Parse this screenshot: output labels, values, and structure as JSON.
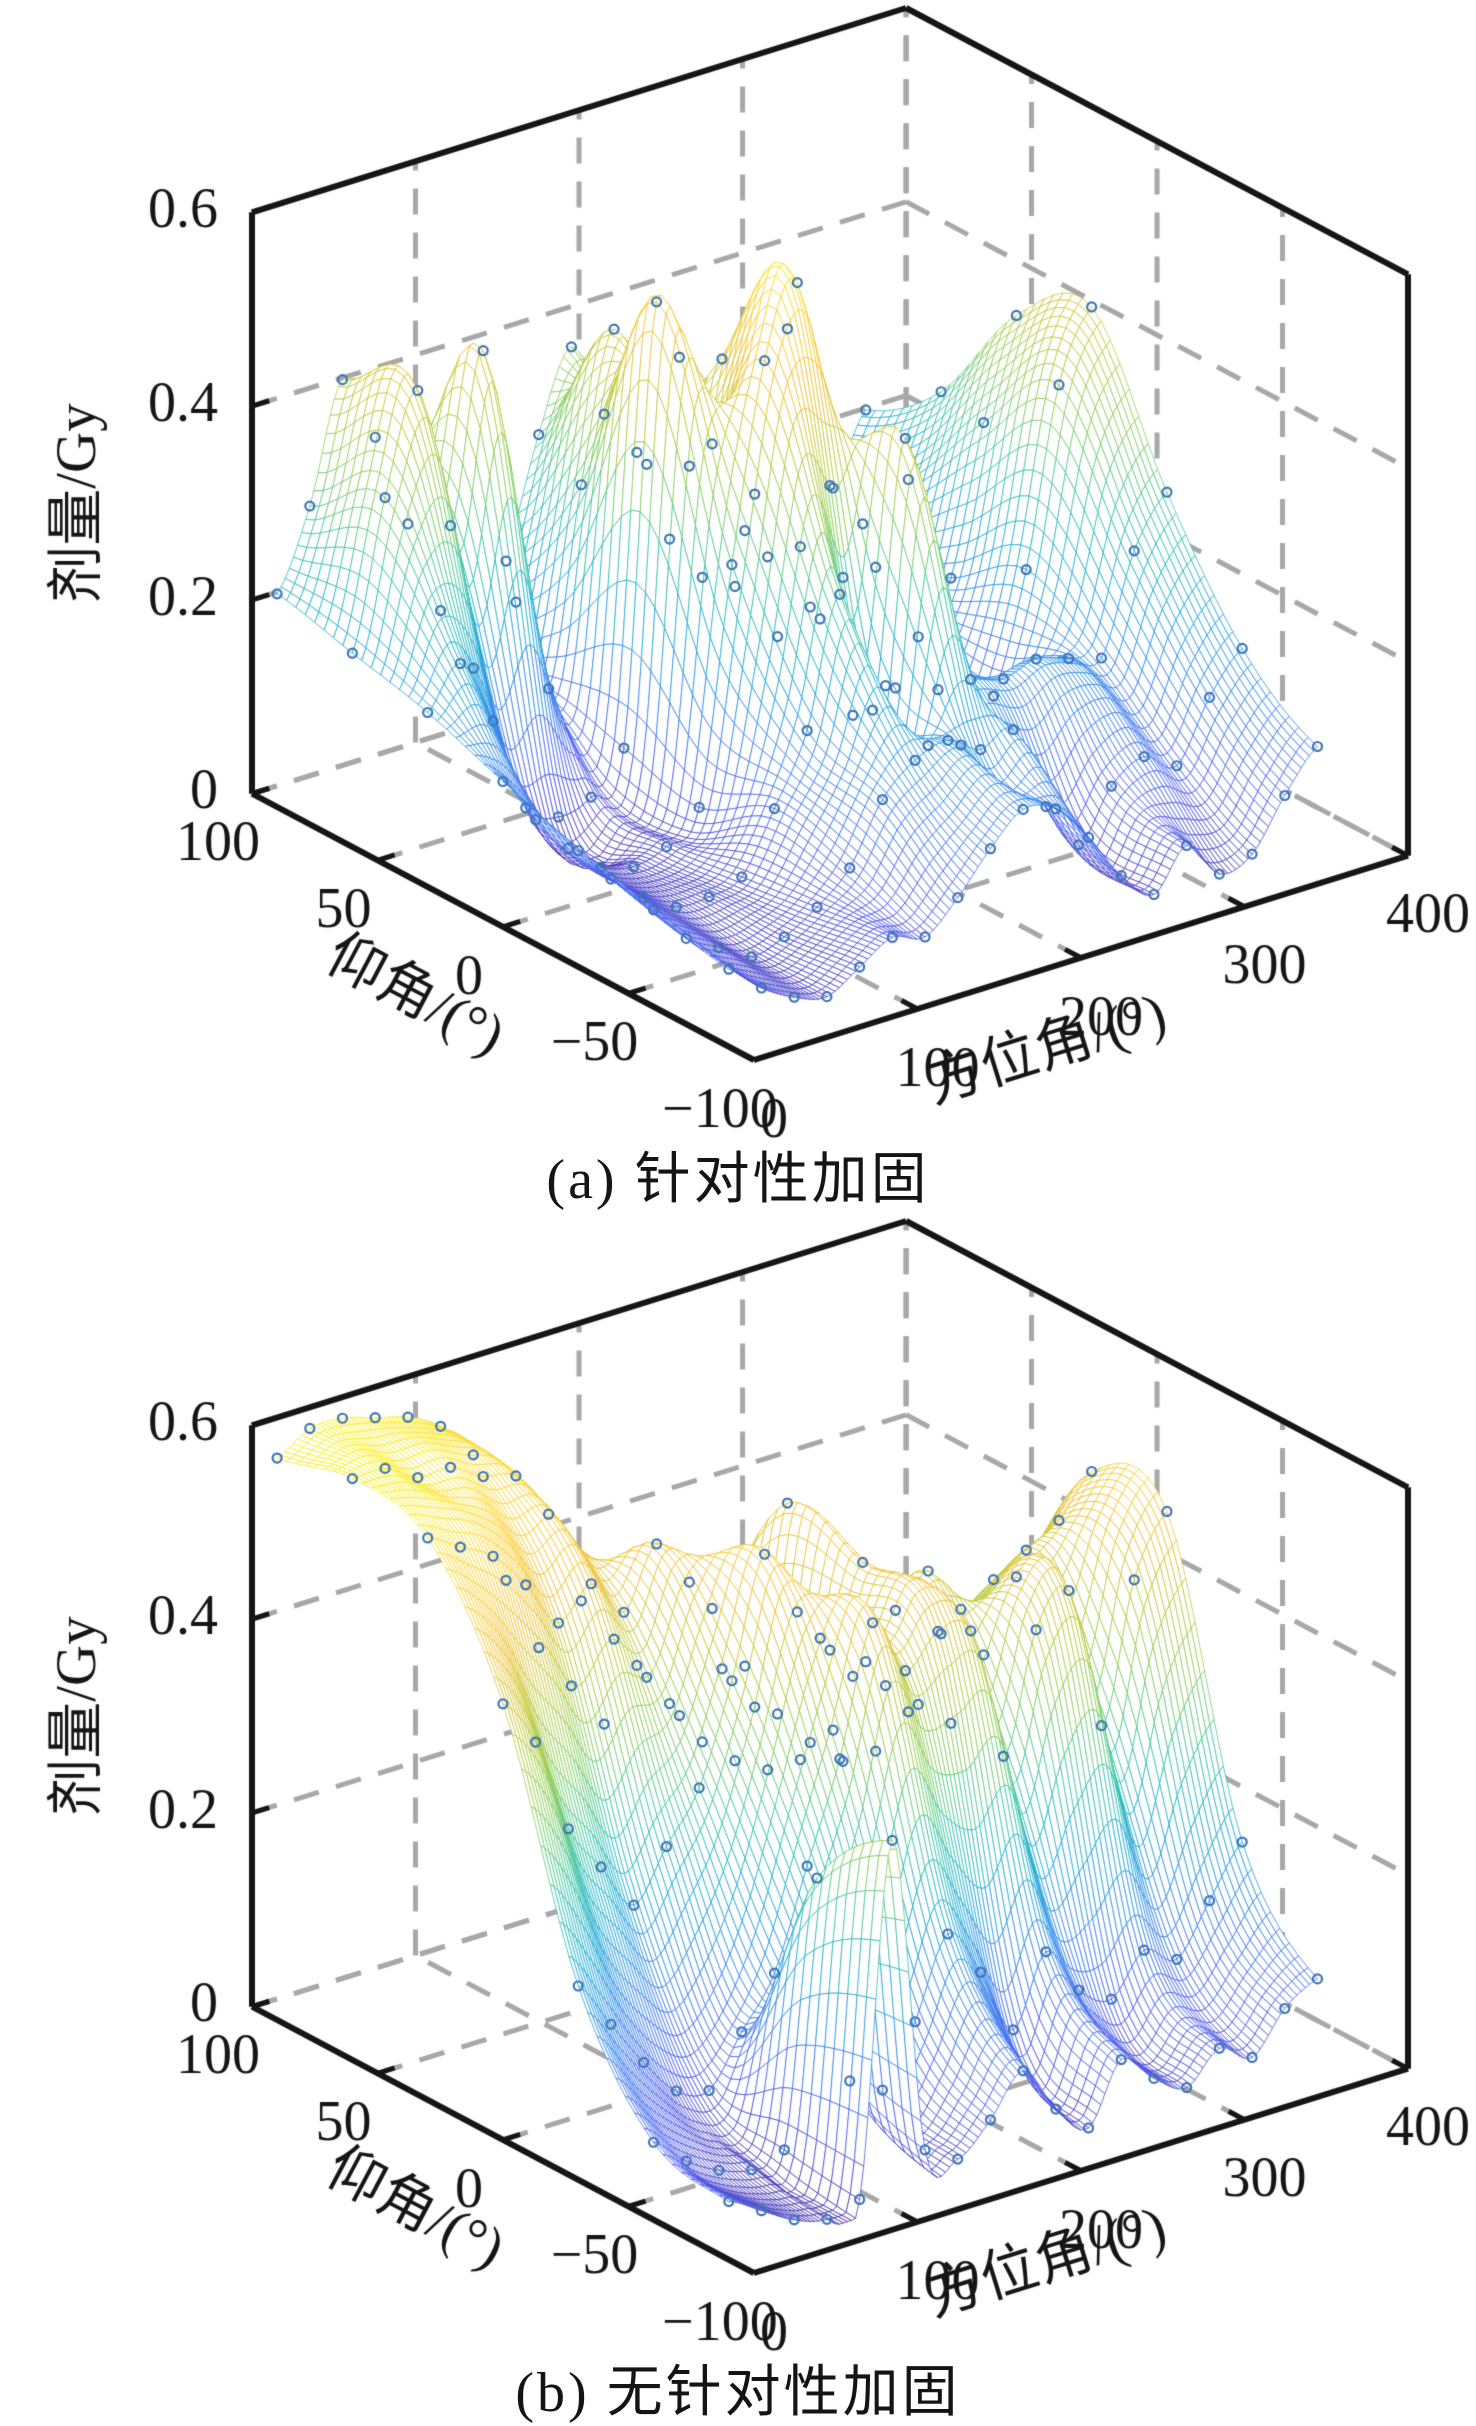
{
  "page": {
    "background": "#ffffff"
  },
  "colors": {
    "axis": "#151515",
    "grid_dash": "#a8a8a8",
    "marker": "#3d74b6",
    "mesh_face": "#ffffff",
    "parula": [
      "#3e26a8",
      "#4153f1",
      "#2d7cec",
      "#12a4d8",
      "#2fc1a4",
      "#7ecb57",
      "#b9c732",
      "#f2be2b",
      "#fdd32a",
      "#f9fb0e"
    ]
  },
  "chart_data": [
    {
      "type": "surface3d",
      "title": "(a) 针对性加固",
      "xlabel": "方位角/(°)",
      "ylabel": "仰角/(°)",
      "zlabel": "剂量/Gy",
      "x_ticks": [
        0,
        100,
        200,
        300,
        400
      ],
      "y_ticks": [
        100,
        50,
        0,
        -50,
        -100
      ],
      "z_ticks": [
        0,
        0.2,
        0.4,
        0.6
      ],
      "x_tick_labels": [
        "0",
        "100",
        "200",
        "300",
        "400"
      ],
      "y_tick_labels": [
        "100",
        "50",
        "0",
        "−50",
        "−100"
      ],
      "z_tick_labels": [
        "0",
        "0.2",
        "0.4",
        "0.6"
      ],
      "xlim": [
        0,
        400
      ],
      "ylim": [
        -100,
        100
      ],
      "zlim": [
        0,
        0.6
      ],
      "grid": true,
      "legend": "none",
      "azimuth_deg": [
        0,
        20,
        40,
        60,
        80,
        100,
        120,
        140,
        160,
        180,
        200,
        220,
        240,
        260,
        280,
        300,
        320,
        340,
        360
      ],
      "elevation_deg": [
        -90,
        -60,
        -30,
        0,
        30,
        60,
        90
      ],
      "dose_gy": [
        [
          0.08,
          0.05,
          0.03,
          0.02,
          0.04,
          0.06,
          0.05,
          0.08,
          0.12,
          0.15,
          0.14,
          0.1,
          0.05,
          0.02,
          0.06,
          0.02,
          0.03,
          0.08,
          0.12
        ],
        [
          0.1,
          0.06,
          0.04,
          0.02,
          0.03,
          0.05,
          0.08,
          0.14,
          0.17,
          0.18,
          0.16,
          0.17,
          0.08,
          0.03,
          0.08,
          0.1,
          0.08,
          0.14,
          0.18
        ],
        [
          0.12,
          0.08,
          0.05,
          0.03,
          0.03,
          0.04,
          0.1,
          0.17,
          0.3,
          0.17,
          0.44,
          0.17,
          0.17,
          0.16,
          0.17,
          0.16,
          0.15,
          0.25,
          0.3
        ],
        [
          0.15,
          0.1,
          0.06,
          0.03,
          0.02,
          0.03,
          0.06,
          0.3,
          0.5,
          0.57,
          0.35,
          0.3,
          0.12,
          0.05,
          0.04,
          0.08,
          0.2,
          0.38,
          0.45
        ],
        [
          0.18,
          0.22,
          0.15,
          0.05,
          0.03,
          0.04,
          0.08,
          0.53,
          0.35,
          0.45,
          0.3,
          0.46,
          0.15,
          0.04,
          0.06,
          0.1,
          0.15,
          0.3,
          0.4
        ],
        [
          0.2,
          0.35,
          0.45,
          0.3,
          0.47,
          0.2,
          0.1,
          0.3,
          0.45,
          0.3,
          0.4,
          0.3,
          0.2,
          0.08,
          0.1,
          0.12,
          0.12,
          0.2,
          0.28
        ],
        [
          0.22,
          0.3,
          0.42,
          0.35,
          0.25,
          0.15,
          0.08,
          0.18,
          0.3,
          0.38,
          0.3,
          0.25,
          0.15,
          0.1,
          0.08,
          0.1,
          0.1,
          0.15,
          0.22
        ]
      ]
    },
    {
      "type": "surface3d",
      "title": "(b) 无针对性加固",
      "xlabel": "方位角/(°)",
      "ylabel": "仰角/(°)",
      "zlabel": "剂量/Gy",
      "x_ticks": [
        0,
        100,
        200,
        300,
        400
      ],
      "y_ticks": [
        100,
        50,
        0,
        -50,
        -100
      ],
      "z_ticks": [
        0,
        0.2,
        0.4,
        0.6
      ],
      "x_tick_labels": [
        "0",
        "100",
        "200",
        "300",
        "400"
      ],
      "y_tick_labels": [
        "100",
        "50",
        "0",
        "−50",
        "−100"
      ],
      "z_tick_labels": [
        "0",
        "0.2",
        "0.4",
        "0.6"
      ],
      "xlim": [
        0,
        400
      ],
      "ylim": [
        -100,
        100
      ],
      "zlim": [
        0,
        0.6
      ],
      "grid": true,
      "legend": "none",
      "azimuth_deg": [
        0,
        20,
        40,
        60,
        80,
        100,
        120,
        140,
        160,
        180,
        200,
        220,
        240,
        260,
        280,
        300,
        320,
        340,
        360
      ],
      "elevation_deg": [
        -90,
        -60,
        -30,
        0,
        30,
        60,
        90
      ],
      "dose_gy": [
        [
          0.06,
          0.04,
          0.02,
          0.01,
          0.02,
          0.38,
          0.05,
          0.03,
          0.06,
          0.1,
          0.05,
          0.02,
          0.08,
          0.05,
          0.03,
          0.06,
          0.04,
          0.08,
          0.1
        ],
        [
          0.08,
          0.05,
          0.03,
          0.02,
          0.03,
          0.3,
          0.08,
          0.06,
          0.12,
          0.2,
          0.15,
          0.08,
          0.15,
          0.1,
          0.08,
          0.12,
          0.1,
          0.15,
          0.2
        ],
        [
          0.2,
          0.15,
          0.1,
          0.06,
          0.05,
          0.1,
          0.15,
          0.25,
          0.35,
          0.48,
          0.42,
          0.45,
          0.44,
          0.3,
          0.42,
          0.45,
          0.3,
          0.44,
          0.5
        ],
        [
          0.45,
          0.4,
          0.3,
          0.25,
          0.2,
          0.25,
          0.3,
          0.4,
          0.52,
          0.45,
          0.4,
          0.48,
          0.42,
          0.45,
          0.4,
          0.42,
          0.44,
          0.46,
          0.5
        ],
        [
          0.58,
          0.56,
          0.54,
          0.5,
          0.45,
          0.48,
          0.44,
          0.5,
          0.45,
          0.35,
          0.3,
          0.5,
          0.35,
          0.3,
          0.28,
          0.25,
          0.22,
          0.28,
          0.35
        ],
        [
          0.6,
          0.6,
          0.58,
          0.58,
          0.56,
          0.55,
          0.5,
          0.4,
          0.35,
          0.3,
          0.25,
          0.35,
          0.28,
          0.22,
          0.18,
          0.15,
          0.15,
          0.18,
          0.25
        ],
        [
          0.58,
          0.6,
          0.6,
          0.59,
          0.58,
          0.56,
          0.52,
          0.38,
          0.3,
          0.25,
          0.2,
          0.25,
          0.2,
          0.15,
          0.12,
          0.1,
          0.1,
          0.12,
          0.18
        ]
      ]
    }
  ]
}
